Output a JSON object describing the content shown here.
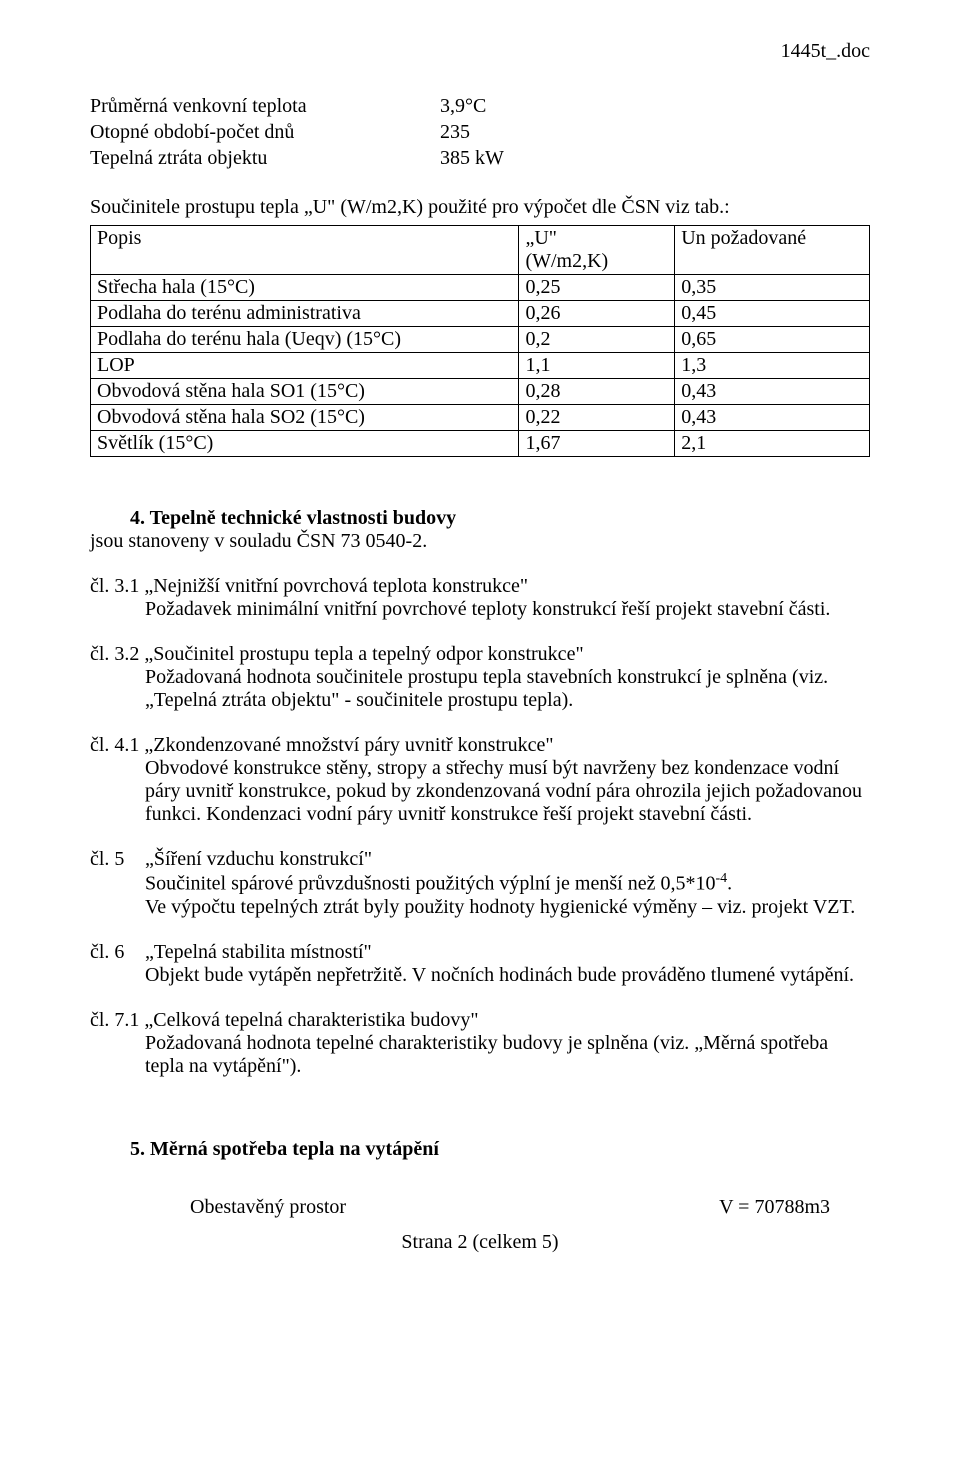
{
  "header": {
    "doc_name": "1445t_.doc"
  },
  "params": {
    "rows": [
      {
        "label": "Průměrná venkovní teplota",
        "value": "3,9°C"
      },
      {
        "label": "Otopné období-počet dnů",
        "value": "235"
      },
      {
        "label": "Tepelná ztráta objektu",
        "value": "385 kW"
      }
    ]
  },
  "table_intro": "Součinitele prostupu tepla „U\" (W/m2,K) použité pro výpočet dle ČSN viz tab.:",
  "table": {
    "head": {
      "c1": "Popis",
      "c2a": "„U\"",
      "c2b": "(W/m2,K)",
      "c3": "Un požadované"
    },
    "rows": [
      {
        "c1": "Střecha hala (15°C)",
        "c2": "0,25",
        "c3": "0,35"
      },
      {
        "c1": "Podlaha do terénu administrativa",
        "c2": "0,26",
        "c3": "0,45"
      },
      {
        "c1": "Podlaha do terénu hala (Ueqv) (15°C)",
        "c2": "0,2",
        "c3": "0,65"
      },
      {
        "c1": "LOP",
        "c2": "1,1",
        "c3": "1,3"
      },
      {
        "c1": "Obvodová stěna hala SO1 (15°C)",
        "c2": "0,28",
        "c3": "0,43"
      },
      {
        "c1": "Obvodová stěna hala SO2 (15°C)",
        "c2": "0,22",
        "c3": "0,43"
      },
      {
        "c1": "Světlík (15°C)",
        "c2": "1,67",
        "c3": "2,1"
      }
    ]
  },
  "section4": {
    "num_title": "4.   Tepelně technické vlastnosti budovy",
    "sub": "jsou stanoveny v souladu ČSN 73 0540-2."
  },
  "clauses": {
    "c31": {
      "head": "čl. 3.1 „Nejnižší vnitřní povrchová teplota konstrukce\"",
      "body": "Požadavek minimální vnitřní povrchové teploty konstrukcí řeší projekt stavební části."
    },
    "c32": {
      "head": "čl. 3.2 „Součinitel prostupu tepla a tepelný odpor konstrukce\"",
      "body": "Požadovaná hodnota součinitele prostupu tepla stavebních konstrukcí je splněna (viz. „Tepelná ztráta objektu\" - součinitele prostupu tepla)."
    },
    "c41": {
      "head": "čl. 4.1 „Zkondenzované množství páry uvnitř konstrukce\"",
      "body": "Obvodové konstrukce stěny, stropy a střechy musí být navrženy bez kondenzace vodní páry uvnitř konstrukce, pokud by zkondenzovaná vodní pára ohrozila jejich požadovanou funkci. Kondenzaci vodní páry uvnitř konstrukce řeší projekt stavební části."
    },
    "c5": {
      "left": "čl. 5",
      "title": "„Šíření vzduchu konstrukcí\"",
      "l1a": "Součinitel spárové průvzdušnosti použitých výplní je menší než 0,5*10",
      "l1b": ".",
      "exp": "-4",
      "l2": "Ve výpočtu tepelných ztrát byly použity hodnoty hygienické výměny – viz. projekt VZT."
    },
    "c6": {
      "left": "čl. 6",
      "title": "„Tepelná stabilita místností\"",
      "body": "Objekt bude vytápěn nepřetržitě. V nočních hodinách bude prováděno tlumené vytápění."
    },
    "c71": {
      "head": "čl. 7.1 „Celková tepelná charakteristika budovy\"",
      "body": "Požadovaná hodnota tepelné charakteristiky budovy je splněna (viz. „Měrná spotřeba tepla na vytápění\")."
    }
  },
  "section5": {
    "title": "5.   Měrná spotřeba tepla na vytápění",
    "obst_label": "Obestavěný prostor",
    "obst_value": "V =  70788m3"
  },
  "footer": "Strana 2 (celkem 5)"
}
